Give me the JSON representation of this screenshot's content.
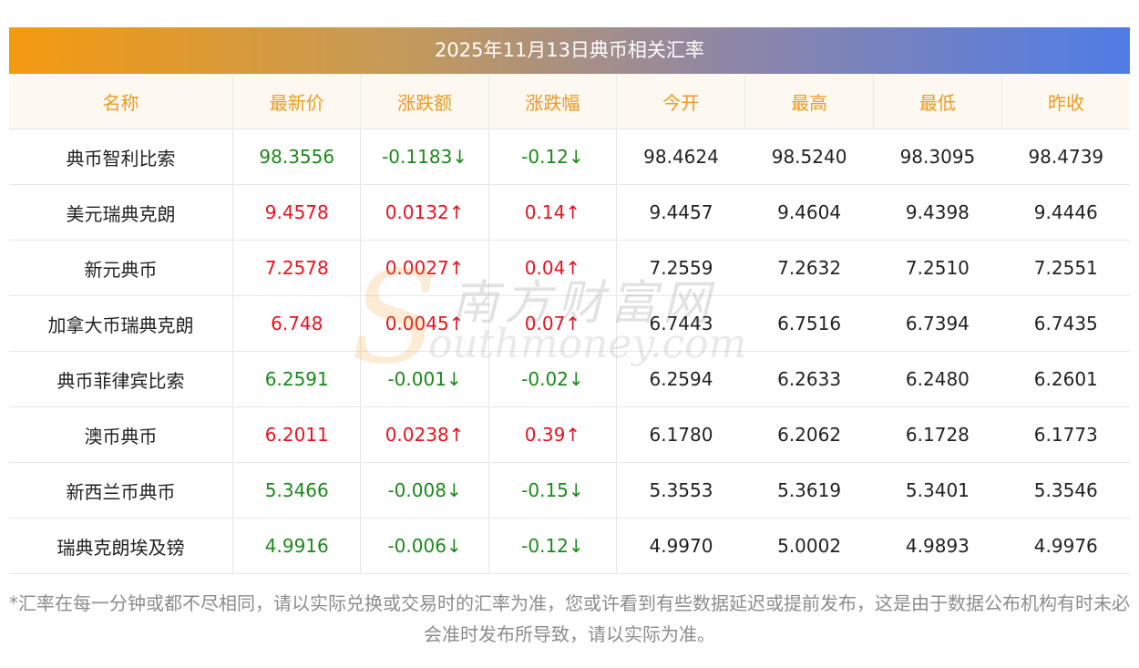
{
  "title": "2025年11月13日典币相关汇率",
  "headers": [
    "名称",
    "最新价",
    "涨跌额",
    "涨跌幅",
    "今开",
    "最高",
    "最低",
    "昨收"
  ],
  "rows": [
    {
      "name": "典币智利比索",
      "latest": "98.3556",
      "change": "-0.1183↓",
      "pct": "-0.12↓",
      "open": "98.4624",
      "high": "98.5240",
      "low": "98.3095",
      "prev": "98.4739",
      "trend": "down"
    },
    {
      "name": "美元瑞典克朗",
      "latest": "9.4578",
      "change": "0.0132↑",
      "pct": "0.14↑",
      "open": "9.4457",
      "high": "9.4604",
      "low": "9.4398",
      "prev": "9.4446",
      "trend": "up"
    },
    {
      "name": "新元典币",
      "latest": "7.2578",
      "change": "0.0027↑",
      "pct": "0.04↑",
      "open": "7.2559",
      "high": "7.2632",
      "low": "7.2510",
      "prev": "7.2551",
      "trend": "up"
    },
    {
      "name": "加拿大币瑞典克朗",
      "latest": "6.748",
      "change": "0.0045↑",
      "pct": "0.07↑",
      "open": "6.7443",
      "high": "6.7516",
      "low": "6.7394",
      "prev": "6.7435",
      "trend": "up"
    },
    {
      "name": "典币菲律宾比索",
      "latest": "6.2591",
      "change": "-0.001↓",
      "pct": "-0.02↓",
      "open": "6.2594",
      "high": "6.2633",
      "low": "6.2480",
      "prev": "6.2601",
      "trend": "down"
    },
    {
      "name": "澳币典币",
      "latest": "6.2011",
      "change": "0.0238↑",
      "pct": "0.39↑",
      "open": "6.1780",
      "high": "6.2062",
      "low": "6.1728",
      "prev": "6.1773",
      "trend": "up"
    },
    {
      "name": "新西兰币典币",
      "latest": "5.3466",
      "change": "-0.008↓",
      "pct": "-0.15↓",
      "open": "5.3553",
      "high": "5.3619",
      "low": "5.3401",
      "prev": "5.3546",
      "trend": "down"
    },
    {
      "name": "瑞典克朗埃及镑",
      "latest": "4.9916",
      "change": "-0.006↓",
      "pct": "-0.12↓",
      "open": "4.9970",
      "high": "5.0002",
      "low": "4.9893",
      "prev": "4.9976",
      "trend": "down"
    }
  ],
  "footnote": "*汇率在每一分钟或都不尽相同，请以实际兑换或交易时的汇率为准，您或许看到有些数据延迟或提前发布，这是由于数据公布机构有时未必会准时发布所导致，请以实际为准。",
  "watermark": {
    "cn": "南方财富网",
    "en": "outhmoney.com",
    "letter": "S"
  },
  "colors": {
    "up": "#e8131e",
    "down": "#1a8a1a",
    "header_text": "#ee9a21",
    "header_bg": "#fdf8f0"
  }
}
